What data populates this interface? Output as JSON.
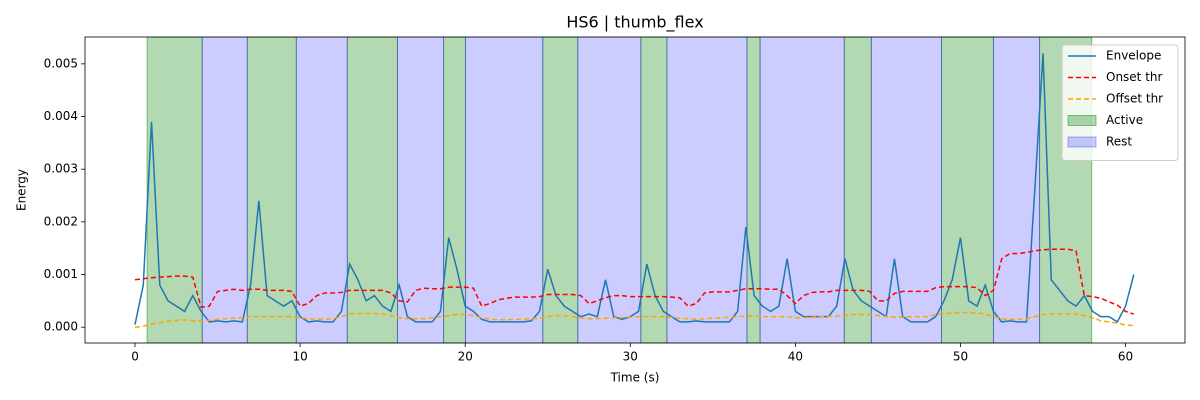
{
  "chart_data": {
    "type": "line",
    "title": "HS6 | thumb_flex",
    "xlabel": "Time (s)",
    "ylabel": "Energy",
    "xlim": [
      -3.03,
      63.6
    ],
    "ylim": [
      -0.0003,
      0.00551
    ],
    "xticks": [
      0,
      10,
      20,
      30,
      40,
      50,
      60
    ],
    "yticks": [
      {
        "value": 0,
        "label": "0.000"
      },
      {
        "value": 0.001,
        "label": "0.001"
      },
      {
        "value": 0.002,
        "label": "0.002"
      },
      {
        "value": 0.003,
        "label": "0.003"
      },
      {
        "value": 0.004,
        "label": "0.004"
      },
      {
        "value": 0.005,
        "label": "0.005"
      }
    ],
    "legend": "upper right",
    "regions": [
      {
        "name": "Active",
        "color": "#008000",
        "alpha": 0.3,
        "intervals": [
          [
            0.73,
            4.07
          ],
          [
            6.8,
            9.77
          ],
          [
            12.86,
            15.9
          ],
          [
            18.69,
            20.02
          ],
          [
            24.7,
            26.82
          ],
          [
            30.64,
            32.22
          ],
          [
            37.07,
            37.86
          ],
          [
            42.96,
            44.6
          ],
          [
            48.85,
            52.0
          ],
          [
            54.79,
            57.95
          ]
        ]
      },
      {
        "name": "Rest",
        "color": "#0000ff",
        "alpha": 0.2,
        "intervals": [
          [
            4.07,
            6.8
          ],
          [
            9.77,
            12.86
          ],
          [
            15.9,
            18.69
          ],
          [
            20.02,
            24.7
          ],
          [
            26.82,
            30.64
          ],
          [
            32.22,
            37.07
          ],
          [
            37.86,
            42.96
          ],
          [
            44.6,
            48.85
          ],
          [
            52.0,
            54.79
          ]
        ]
      }
    ],
    "x": [
      0,
      0.5,
      1,
      1.5,
      2,
      2.5,
      3,
      3.5,
      4,
      4.5,
      5,
      5.5,
      6,
      6.5,
      7,
      7.5,
      8,
      8.5,
      9,
      9.5,
      10,
      10.5,
      11,
      11.5,
      12,
      12.5,
      13,
      13.5,
      14,
      14.5,
      15,
      15.5,
      16,
      16.5,
      17,
      17.5,
      18,
      18.5,
      19,
      19.5,
      20,
      20.5,
      21,
      21.5,
      22,
      22.5,
      23,
      23.5,
      24,
      24.5,
      25,
      25.5,
      26,
      26.5,
      27,
      27.5,
      28,
      28.5,
      29,
      29.5,
      30,
      30.5,
      31,
      31.5,
      32,
      32.5,
      33,
      33.5,
      34,
      34.5,
      35,
      35.5,
      36,
      36.5,
      37,
      37.5,
      38,
      38.5,
      39,
      39.5,
      40,
      40.5,
      41,
      41.5,
      42,
      42.5,
      43,
      43.5,
      44,
      44.5,
      45,
      45.5,
      46,
      46.5,
      47,
      47.5,
      48,
      48.5,
      49,
      49.5,
      50,
      50.5,
      51,
      51.5,
      52,
      52.5,
      53,
      53.5,
      54,
      54.5,
      55,
      55.5,
      56,
      56.5,
      57,
      57.5,
      58,
      58.5,
      59,
      59.5,
      60,
      60.5
    ],
    "series": [
      {
        "name": "Envelope",
        "color": "#1f77b4",
        "dashed": false,
        "values": [
          5e-05,
          0.0008,
          0.0039,
          0.0008,
          0.0005,
          0.0004,
          0.0003,
          0.0006,
          0.0003,
          0.0001,
          0.00012,
          0.0001,
          0.00012,
          0.0001,
          0.0008,
          0.0024,
          0.0006,
          0.0005,
          0.0004,
          0.0005,
          0.0002,
          0.0001,
          0.00012,
          0.0001,
          0.0001,
          0.0003,
          0.0012,
          0.0009,
          0.0005,
          0.0006,
          0.0004,
          0.0003,
          0.0008,
          0.0002,
          0.0001,
          0.0001,
          0.0001,
          0.0003,
          0.0017,
          0.0011,
          0.0004,
          0.0003,
          0.00015,
          0.0001,
          0.0001,
          0.0001,
          0.0001,
          0.0001,
          0.00012,
          0.0003,
          0.0011,
          0.0006,
          0.0004,
          0.0003,
          0.0002,
          0.00025,
          0.0002,
          0.0009,
          0.0002,
          0.00015,
          0.0002,
          0.0003,
          0.0012,
          0.0006,
          0.0003,
          0.0002,
          0.0001,
          0.0001,
          0.00012,
          0.0001,
          0.0001,
          0.0001,
          0.0001,
          0.0003,
          0.0019,
          0.0006,
          0.0004,
          0.0003,
          0.0004,
          0.0013,
          0.0003,
          0.0002,
          0.0002,
          0.0002,
          0.0002,
          0.0004,
          0.0013,
          0.0007,
          0.0005,
          0.0004,
          0.0003,
          0.0002,
          0.0013,
          0.0002,
          0.0001,
          0.0001,
          0.0001,
          0.0002,
          0.0005,
          0.0009,
          0.0017,
          0.0005,
          0.0004,
          0.0008,
          0.0003,
          0.0001,
          0.00012,
          0.0001,
          0.0001,
          0.0026,
          0.0052,
          0.0009,
          0.0007,
          0.0005,
          0.0004,
          0.0006,
          0.0003,
          0.0002,
          0.0002,
          0.0001,
          0.0004,
          0.001
        ]
      },
      {
        "name": "Onset thr",
        "color": "#ff0000",
        "dashed": true,
        "values": [
          0.0009,
          0.00092,
          0.00094,
          0.00095,
          0.00096,
          0.00097,
          0.00097,
          0.00095,
          0.00038,
          0.0004,
          0.00068,
          0.0007,
          0.00072,
          0.0007,
          0.00072,
          0.00072,
          0.0007,
          0.0007,
          0.0007,
          0.00068,
          0.0004,
          0.00045,
          0.0006,
          0.00065,
          0.00065,
          0.00066,
          0.0007,
          0.0007,
          0.0007,
          0.0007,
          0.0007,
          0.00065,
          0.0005,
          0.00048,
          0.0007,
          0.00074,
          0.00073,
          0.00073,
          0.00076,
          0.00076,
          0.00076,
          0.00074,
          0.0004,
          0.00045,
          0.00052,
          0.00055,
          0.00057,
          0.00057,
          0.00057,
          0.00058,
          0.00062,
          0.00062,
          0.00062,
          0.00062,
          0.0006,
          0.00045,
          0.0005,
          0.00056,
          0.0006,
          0.0006,
          0.00058,
          0.00058,
          0.00058,
          0.00058,
          0.00058,
          0.00057,
          0.00056,
          0.0004,
          0.00045,
          0.00065,
          0.00067,
          0.00067,
          0.00067,
          0.0007,
          0.00073,
          0.00073,
          0.00073,
          0.00072,
          0.00072,
          0.0006,
          0.00045,
          0.0006,
          0.00066,
          0.00067,
          0.00067,
          0.0007,
          0.0007,
          0.0007,
          0.0007,
          0.00068,
          0.0005,
          0.0005,
          0.00064,
          0.00068,
          0.00068,
          0.00068,
          0.00068,
          0.00075,
          0.00077,
          0.00077,
          0.00077,
          0.00077,
          0.00075,
          0.0006,
          0.0007,
          0.0013,
          0.0014,
          0.0014,
          0.00142,
          0.00145,
          0.00147,
          0.00148,
          0.00148,
          0.00148,
          0.00145,
          0.0006,
          0.00058,
          0.00055,
          0.00048,
          0.00042,
          0.0003,
          0.00025
        ]
      },
      {
        "name": "Offset thr",
        "color": "#ffa500",
        "dashed": true,
        "values": [
          0,
          2e-05,
          6e-05,
          9e-05,
          0.00011,
          0.00013,
          0.00014,
          0.00012,
          0.00012,
          0.00013,
          0.00015,
          0.00016,
          0.00017,
          0.00018,
          0.0002,
          0.0002,
          0.0002,
          0.0002,
          0.0002,
          0.0002,
          0.00018,
          0.00016,
          0.00015,
          0.00015,
          0.00016,
          0.0002,
          0.00025,
          0.00026,
          0.00026,
          0.00026,
          0.00025,
          0.00022,
          0.00018,
          0.00016,
          0.00016,
          0.00016,
          0.00018,
          0.0002,
          0.00022,
          0.00024,
          0.00024,
          0.00022,
          0.00018,
          0.00015,
          0.00014,
          0.00014,
          0.00015,
          0.00015,
          0.00016,
          0.00017,
          0.0002,
          0.00022,
          0.00022,
          0.0002,
          0.00018,
          0.00016,
          0.00016,
          0.00017,
          0.00018,
          0.00018,
          0.00019,
          0.0002,
          0.0002,
          0.0002,
          0.0002,
          0.00019,
          0.00017,
          0.00016,
          0.00015,
          0.00016,
          0.00017,
          0.00018,
          0.00019,
          0.0002,
          0.00021,
          0.00021,
          0.0002,
          0.0002,
          0.0002,
          0.0002,
          0.00018,
          0.00018,
          0.00019,
          0.0002,
          0.0002,
          0.00021,
          0.00022,
          0.00024,
          0.00024,
          0.00024,
          0.00022,
          0.0002,
          0.00019,
          0.00019,
          0.0002,
          0.0002,
          0.0002,
          0.00024,
          0.00026,
          0.00027,
          0.00028,
          0.00028,
          0.00027,
          0.00025,
          0.0002,
          0.00016,
          0.00015,
          0.00015,
          0.00016,
          0.0002,
          0.00024,
          0.00025,
          0.00025,
          0.00025,
          0.00025,
          0.00022,
          0.00018,
          0.00012,
          0.0001,
          8e-05,
          4e-05,
          3e-05
        ]
      }
    ]
  }
}
